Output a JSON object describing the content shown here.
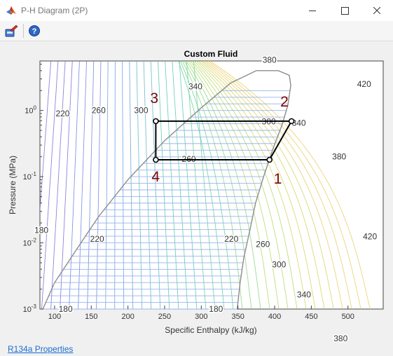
{
  "window": {
    "title": "P-H Diagram (2P)",
    "controls": [
      "minimize",
      "maximize",
      "close"
    ]
  },
  "toolbar": {
    "items": [
      {
        "name": "plot-tools-icon",
        "label": ""
      },
      {
        "name": "help-icon",
        "label": "?"
      }
    ]
  },
  "link": {
    "text": "R134a Properties"
  },
  "chart_data": {
    "type": "line",
    "title": "Custom Fluid",
    "xlabel": "Specific Enthalpy (kJ/kg)",
    "ylabel": "Pressure (MPa)",
    "xlim": [
      80,
      548
    ],
    "ylim": [
      0.001,
      5.6
    ],
    "yscale": "log",
    "x_ticks": [
      100,
      150,
      200,
      250,
      300,
      350,
      400,
      450,
      500
    ],
    "y_ticks": [
      "10^{-3}",
      "10^{-2}",
      "10^{-1}",
      "10^{0}"
    ],
    "grid": false,
    "dome": {
      "liquid_line": [
        [
          84,
          0.001
        ],
        [
          100,
          0.0025
        ],
        [
          130,
          0.008
        ],
        [
          160,
          0.025
        ],
        [
          200,
          0.09
        ],
        [
          250,
          0.35
        ],
        [
          300,
          1.1
        ],
        [
          340,
          2.6
        ],
        [
          375,
          4.0
        ]
      ],
      "vapor_line": [
        [
          349,
          0.001
        ],
        [
          353,
          0.0025
        ],
        [
          358,
          0.006
        ],
        [
          366,
          0.015
        ],
        [
          374,
          0.04
        ],
        [
          385,
          0.1
        ],
        [
          397,
          0.25
        ],
        [
          410,
          0.6
        ],
        [
          418,
          1.2
        ],
        [
          422,
          2.4
        ],
        [
          420,
          3.4
        ],
        [
          405,
          4.0
        ],
        [
          375,
          4.0
        ]
      ]
    },
    "isotherm_labels": [
      {
        "text": "180",
        "h": 115,
        "p": 0.001
      },
      {
        "text": "180",
        "h": 320,
        "p": 0.001
      },
      {
        "text": "180",
        "h": 82,
        "p": 0.0155
      },
      {
        "text": "220",
        "h": 111,
        "p": 0.9
      },
      {
        "text": "220",
        "h": 158,
        "p": 0.0115
      },
      {
        "text": "220",
        "h": 341,
        "p": 0.0115
      },
      {
        "text": "260",
        "h": 160,
        "p": 1.0
      },
      {
        "text": "260",
        "h": 283,
        "p": 0.185
      },
      {
        "text": "260",
        "h": 384,
        "p": 0.0095
      },
      {
        "text": "300",
        "h": 218,
        "p": 1.0
      },
      {
        "text": "300",
        "h": 392,
        "p": 0.68
      },
      {
        "text": "300",
        "h": 406,
        "p": 0.0047
      },
      {
        "text": "340",
        "h": 292,
        "p": 2.3
      },
      {
        "text": "340",
        "h": 433,
        "p": 0.65
      },
      {
        "text": "340",
        "h": 440,
        "p": 0.00165
      },
      {
        "text": "380",
        "h": 393,
        "p": 5.8
      },
      {
        "text": "380",
        "h": 488,
        "p": 0.2
      },
      {
        "text": "380",
        "h": 490,
        "p": 0.00036
      },
      {
        "text": "420",
        "h": 522,
        "p": 2.5
      },
      {
        "text": "420",
        "h": 530,
        "p": 0.0125
      }
    ],
    "cycle": {
      "points": [
        {
          "label": "1",
          "h": 393,
          "p": 0.18
        },
        {
          "label": "2",
          "h": 423,
          "p": 0.69
        },
        {
          "label": "3",
          "h": 238,
          "p": 0.69
        },
        {
          "label": "4",
          "h": 238,
          "p": 0.18
        }
      ]
    },
    "colors": {
      "dome": "#8c8c8c",
      "cycle": "#000000",
      "state_label": "#7a0000",
      "isobar": "#98b4ee"
    }
  }
}
